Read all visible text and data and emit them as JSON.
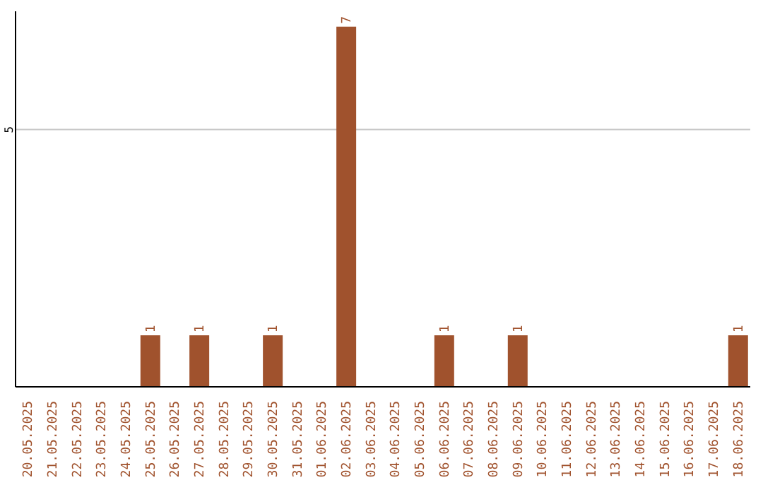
{
  "chart_data": {
    "type": "bar",
    "categories": [
      "20.05.2025",
      "21.05.2025",
      "22.05.2025",
      "23.05.2025",
      "24.05.2025",
      "25.05.2025",
      "26.05.2025",
      "27.05.2025",
      "28.05.2025",
      "29.05.2025",
      "30.05.2025",
      "31.05.2025",
      "01.06.2025",
      "02.06.2025",
      "03.06.2025",
      "04.06.2025",
      "05.06.2025",
      "06.06.2025",
      "07.06.2025",
      "08.06.2025",
      "09.06.2025",
      "10.06.2025",
      "11.06.2025",
      "12.06.2025",
      "13.06.2025",
      "14.06.2025",
      "15.06.2025",
      "16.06.2025",
      "17.06.2025",
      "18.06.2025"
    ],
    "values": [
      0,
      0,
      0,
      0,
      0,
      1,
      0,
      1,
      0,
      0,
      1,
      0,
      0,
      7,
      0,
      0,
      0,
      1,
      0,
      0,
      1,
      0,
      0,
      0,
      0,
      0,
      0,
      0,
      0,
      1
    ],
    "value_labels": [
      null,
      null,
      null,
      null,
      null,
      "1",
      null,
      "1",
      null,
      null,
      "1",
      null,
      null,
      "7",
      null,
      null,
      null,
      "1",
      null,
      null,
      "1",
      null,
      null,
      null,
      null,
      null,
      null,
      null,
      null,
      "1"
    ],
    "color": "#a0522d",
    "ylim": [
      0,
      7.3
    ],
    "yticks": [
      5
    ],
    "grid": "y",
    "legend": false
  }
}
